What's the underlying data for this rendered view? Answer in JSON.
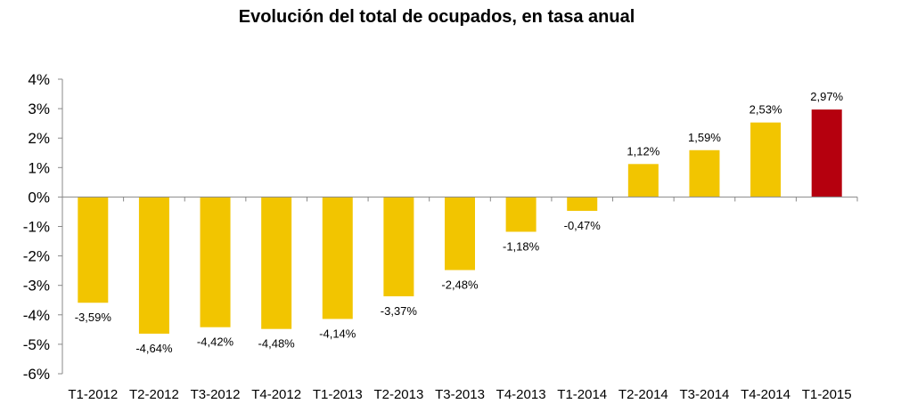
{
  "chart_data": {
    "type": "bar",
    "title": "Evolución del total de ocupados, en tasa anual",
    "xlabel": "",
    "ylabel": "",
    "categories": [
      "T1-2012",
      "T2-2012",
      "T3-2012",
      "T4-2012",
      "T1-2013",
      "T2-2013",
      "T3-2013",
      "T4-2013",
      "T1-2014",
      "T2-2014",
      "T3-2014",
      "T4-2014",
      "T1-2015"
    ],
    "values": [
      -3.59,
      -4.64,
      -4.42,
      -4.48,
      -4.14,
      -3.37,
      -2.48,
      -1.18,
      -0.47,
      1.12,
      1.59,
      2.53,
      2.97
    ],
    "data_labels": [
      "-3,59%",
      "-4,64%",
      "-4,42%",
      "-4,48%",
      "-4,14%",
      "-3,37%",
      "-2,48%",
      "-1,18%",
      "-0,47%",
      "1,12%",
      "1,59%",
      "2,53%",
      "2,97%"
    ],
    "ylim": [
      -6,
      4
    ],
    "yticks": [
      4,
      3,
      2,
      1,
      0,
      -1,
      -2,
      -3,
      -4,
      -5,
      -6
    ],
    "ytick_labels": [
      "4%",
      "3%",
      "2%",
      "1%",
      "0%",
      "-1%",
      "-2%",
      "-3%",
      "-4%",
      "-5%",
      "-6%"
    ],
    "colors": {
      "default": "#F2C500",
      "highlight": "#B5000E",
      "axis": "#888888"
    },
    "highlight_index": 12,
    "grid": false
  }
}
